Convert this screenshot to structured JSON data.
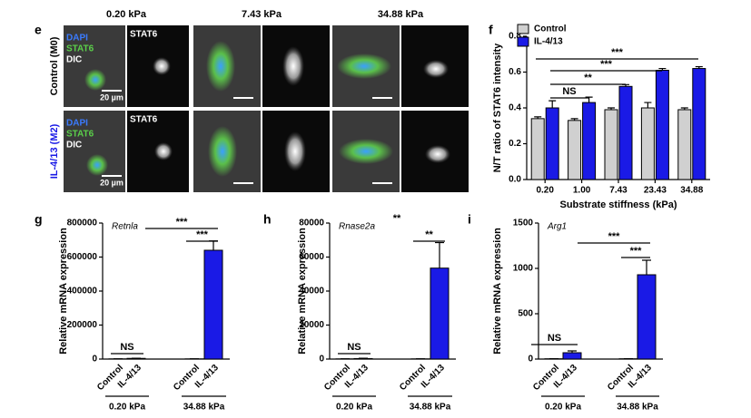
{
  "panel_e": {
    "label": "e",
    "columns": [
      "0.20 kPa",
      "7.43 kPa",
      "34.88 kPa"
    ],
    "rows": [
      {
        "treatment": "Control",
        "macrophage": "(M0)",
        "channels": [
          "DAPI",
          "STAT6",
          "DIC"
        ],
        "scale_bar": "20 µm",
        "single_channel": "STAT6"
      },
      {
        "treatment": "IL-4/13",
        "macrophage": "(M2)",
        "channels": [
          "DAPI",
          "STAT6",
          "DIC"
        ],
        "scale_bar": "20 µm",
        "single_channel": "STAT6"
      }
    ]
  },
  "chart_data": [
    {
      "type": "grouped-bar",
      "panel": "f",
      "y_label": "N/T ratio of STAT6 intensity",
      "x_label": "Substrate stiffness (kPa)",
      "categories": [
        "0.20",
        "1.00",
        "7.43",
        "23.43",
        "34.88"
      ],
      "series": [
        {
          "name": "Control",
          "color": "#d0d0d0",
          "values": [
            0.34,
            0.33,
            0.39,
            0.4,
            0.39
          ],
          "errors": [
            0.01,
            0.01,
            0.01,
            0.03,
            0.01
          ]
        },
        {
          "name": "IL-4/13",
          "color": "#1a1ae6",
          "values": [
            0.4,
            0.43,
            0.52,
            0.61,
            0.62
          ],
          "errors": [
            0.04,
            0.03,
            0.01,
            0.01,
            0.01
          ]
        }
      ],
      "ylim": [
        0,
        0.8
      ],
      "yticks": [
        {
          "value": 0,
          "label": "0.0"
        },
        0.2,
        0.4,
        0.6,
        0.8
      ],
      "annotations": [
        "NS",
        "**",
        "***",
        "***"
      ],
      "legend": "top-left"
    },
    {
      "type": "bar",
      "panel": "g",
      "gene": "Retnla",
      "y_label": "Relative mRNA expression",
      "categories": [
        "Control",
        "IL-4/13",
        "Control",
        "IL-4/13"
      ],
      "groups": [
        "0.20 kPa",
        "34.88 kPa"
      ],
      "values": [
        1000,
        4000,
        1000,
        640000
      ],
      "errors": [
        200,
        1000,
        200,
        55000
      ],
      "colors": [
        "#d0d0d0",
        "#1a1ae6",
        "#d0d0d0",
        "#1a1ae6"
      ],
      "ylim": [
        0,
        800000
      ],
      "yticks": [
        0,
        200000,
        400000,
        600000,
        800000
      ],
      "annotations": [
        "NS",
        "***",
        "***"
      ]
    },
    {
      "type": "bar",
      "panel": "h",
      "gene": "Rnase2a",
      "y_label": "Relative mRNA expression",
      "categories": [
        "Control",
        "IL-4/13",
        "Control",
        "IL-4/13"
      ],
      "groups": [
        "0.20 kPa",
        "34.88 kPa"
      ],
      "values": [
        100,
        300,
        100,
        53500
      ],
      "errors": [
        50,
        200,
        50,
        15000
      ],
      "colors": [
        "#d0d0d0",
        "#1a1ae6",
        "#d0d0d0",
        "#1a1ae6"
      ],
      "ylim": [
        0,
        80000
      ],
      "yticks": [
        0,
        20000,
        40000,
        60000,
        80000
      ],
      "annotations": [
        "NS",
        "**",
        "**"
      ]
    },
    {
      "type": "bar",
      "panel": "i",
      "gene": "Arg1",
      "y_label": "Relative mRNA expression",
      "categories": [
        "Control",
        "IL-4/13",
        "Control",
        "IL-4/13"
      ],
      "groups": [
        "0.20 kPa",
        "34.88 kPa"
      ],
      "values": [
        3,
        70,
        3,
        930
      ],
      "errors": [
        1,
        20,
        1,
        160
      ],
      "colors": [
        "#d0d0d0",
        "#1a1ae6",
        "#d0d0d0",
        "#1a1ae6"
      ],
      "ylim": [
        0,
        1500
      ],
      "yticks": [
        0,
        500,
        1000,
        1500
      ],
      "annotations": [
        "NS",
        "***",
        "***"
      ]
    }
  ]
}
